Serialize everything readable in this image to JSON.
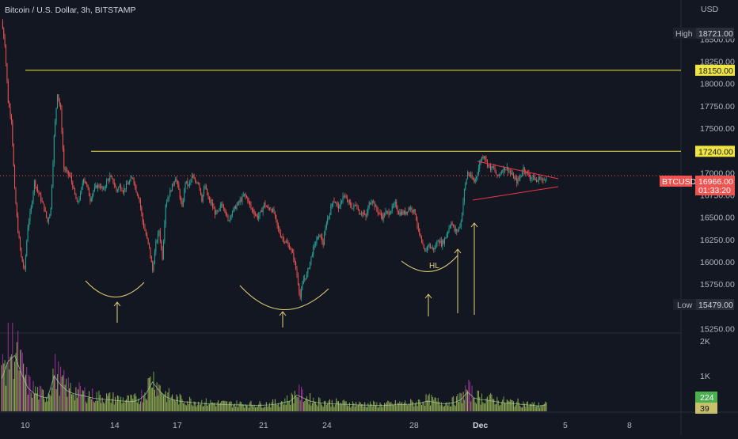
{
  "header": {
    "title": "Bitcoin / U.S. Dollar, 3h, BITSTAMP",
    "currency": "USD"
  },
  "colors": {
    "background": "#131722",
    "up": "#26a69a",
    "down": "#ef5350",
    "level_line": "#f0e442",
    "triangle": "#f23645",
    "annotation": "#e6d27a",
    "volume_up": "#7cc04a",
    "volume_down": "#c8c06a",
    "volume_spike": "#b43aa6",
    "volume_ma": "#a5d6a7",
    "axis_text": "#b2b5be",
    "current_price_label": "#ef5350"
  },
  "price_axis": {
    "ticks": [
      "18500.00",
      "18250.00",
      "18000.00",
      "17750.00",
      "17500.00",
      "17000.00",
      "16750.00",
      "16500.00",
      "16250.00",
      "16000.00",
      "15750.00",
      "15250.00"
    ],
    "tick_values": [
      18500,
      18250,
      18000,
      17750,
      17500,
      17000,
      16750,
      16500,
      16250,
      16000,
      15750,
      15250
    ]
  },
  "badges": {
    "high_label": "High",
    "high_value": "18721.00",
    "level_18150": "18150.00",
    "level_17240": "17240.00",
    "symbol": "BTCUSD",
    "current_price": "16966.00",
    "countdown": "01:33:20",
    "low_label": "Low",
    "low_value": "15479.00"
  },
  "volume_axis": {
    "ticks": [
      "2K",
      "1K"
    ],
    "last_volume": "224",
    "last_volume_ma": "39"
  },
  "time_axis": {
    "labels": [
      "10",
      "14",
      "17",
      "21",
      "24",
      "28",
      "Dec",
      "5",
      "8"
    ]
  },
  "annotations": {
    "higher_low": "HL"
  },
  "chart_data": {
    "type": "candlestick",
    "title": "Bitcoin / U.S. Dollar, 3h, BITSTAMP",
    "ylim": [
      15200,
      18850
    ],
    "horizontal_levels": [
      18150,
      17240
    ],
    "current_price": 16966,
    "high": 18721,
    "low": 15479,
    "x_labels": [
      "10",
      "14",
      "17",
      "21",
      "24",
      "28",
      "Dec",
      "5",
      "8"
    ],
    "close_path": [
      [
        0,
        18700
      ],
      [
        3,
        18450
      ],
      [
        6,
        17800
      ],
      [
        9,
        17600
      ],
      [
        12,
        16800
      ],
      [
        15,
        16350
      ],
      [
        18,
        16050
      ],
      [
        21,
        15900
      ],
      [
        24,
        16400
      ],
      [
        27,
        16600
      ],
      [
        30,
        16900
      ],
      [
        33,
        16800
      ],
      [
        36,
        16700
      ],
      [
        39,
        16600
      ],
      [
        42,
        16450
      ],
      [
        45,
        16600
      ],
      [
        48,
        17400
      ],
      [
        51,
        17900
      ],
      [
        54,
        17700
      ],
      [
        57,
        17050
      ],
      [
        60,
        17000
      ],
      [
        63,
        16950
      ],
      [
        66,
        16800
      ],
      [
        69,
        16650
      ],
      [
        72,
        16750
      ],
      [
        75,
        16950
      ],
      [
        78,
        16850
      ],
      [
        81,
        16700
      ],
      [
        84,
        16800
      ],
      [
        87,
        16850
      ],
      [
        90,
        16850
      ],
      [
        93,
        16800
      ],
      [
        96,
        16900
      ],
      [
        99,
        16950
      ],
      [
        102,
        16900
      ],
      [
        105,
        16800
      ],
      [
        108,
        16850
      ],
      [
        111,
        16800
      ],
      [
        114,
        16850
      ],
      [
        117,
        16900
      ],
      [
        120,
        16950
      ],
      [
        123,
        16800
      ],
      [
        126,
        16700
      ],
      [
        129,
        16450
      ],
      [
        132,
        16300
      ],
      [
        135,
        16150
      ],
      [
        138,
        15900
      ],
      [
        141,
        16200
      ],
      [
        144,
        16350
      ],
      [
        147,
        16050
      ],
      [
        150,
        16650
      ],
      [
        153,
        16750
      ],
      [
        156,
        16850
      ],
      [
        159,
        16950
      ],
      [
        162,
        16800
      ],
      [
        165,
        16600
      ],
      [
        168,
        16900
      ],
      [
        171,
        16850
      ],
      [
        174,
        16950
      ],
      [
        177,
        16900
      ],
      [
        180,
        16900
      ],
      [
        183,
        16700
      ],
      [
        186,
        16850
      ],
      [
        189,
        16700
      ],
      [
        192,
        16650
      ],
      [
        195,
        16550
      ],
      [
        198,
        16550
      ],
      [
        201,
        16650
      ],
      [
        204,
        16600
      ],
      [
        207,
        16450
      ],
      [
        210,
        16550
      ],
      [
        213,
        16600
      ],
      [
        216,
        16650
      ],
      [
        219,
        16700
      ],
      [
        222,
        16750
      ],
      [
        225,
        16700
      ],
      [
        228,
        16600
      ],
      [
        231,
        16550
      ],
      [
        234,
        16500
      ],
      [
        237,
        16550
      ],
      [
        240,
        16650
      ],
      [
        243,
        16600
      ],
      [
        246,
        16600
      ],
      [
        249,
        16550
      ],
      [
        252,
        16400
      ],
      [
        255,
        16300
      ],
      [
        258,
        16250
      ],
      [
        261,
        16200
      ],
      [
        264,
        16150
      ],
      [
        267,
        16050
      ],
      [
        270,
        15850
      ],
      [
        273,
        15600
      ],
      [
        276,
        15800
      ],
      [
        279,
        15850
      ],
      [
        282,
        16000
      ],
      [
        285,
        16150
      ],
      [
        288,
        16250
      ],
      [
        291,
        16300
      ],
      [
        294,
        16200
      ],
      [
        297,
        16450
      ],
      [
        300,
        16550
      ],
      [
        303,
        16700
      ],
      [
        306,
        16650
      ],
      [
        309,
        16600
      ],
      [
        312,
        16750
      ],
      [
        315,
        16700
      ],
      [
        318,
        16650
      ],
      [
        321,
        16600
      ],
      [
        324,
        16650
      ],
      [
        327,
        16550
      ],
      [
        330,
        16550
      ],
      [
        333,
        16500
      ],
      [
        336,
        16650
      ],
      [
        339,
        16700
      ],
      [
        342,
        16600
      ],
      [
        345,
        16550
      ],
      [
        348,
        16500
      ],
      [
        351,
        16550
      ],
      [
        354,
        16550
      ],
      [
        357,
        16600
      ],
      [
        360,
        16650
      ],
      [
        363,
        16550
      ],
      [
        366,
        16550
      ],
      [
        369,
        16550
      ],
      [
        372,
        16600
      ],
      [
        375,
        16600
      ],
      [
        378,
        16550
      ],
      [
        381,
        16350
      ],
      [
        384,
        16200
      ],
      [
        387,
        16100
      ],
      [
        390,
        16200
      ],
      [
        393,
        16150
      ],
      [
        396,
        16150
      ],
      [
        399,
        16250
      ],
      [
        402,
        16200
      ],
      [
        405,
        16250
      ],
      [
        408,
        16350
      ],
      [
        411,
        16450
      ],
      [
        414,
        16350
      ],
      [
        417,
        16350
      ],
      [
        420,
        16450
      ],
      [
        423,
        16800
      ],
      [
        426,
        17000
      ],
      [
        429,
        16950
      ],
      [
        432,
        16900
      ],
      [
        435,
        17000
      ],
      [
        438,
        17150
      ],
      [
        441,
        17200
      ],
      [
        444,
        17100
      ],
      [
        447,
        17050
      ],
      [
        450,
        17050
      ],
      [
        453,
        16950
      ],
      [
        456,
        17000
      ],
      [
        459,
        17050
      ],
      [
        462,
        17050
      ],
      [
        465,
        17000
      ],
      [
        468,
        16950
      ],
      [
        471,
        16900
      ],
      [
        474,
        16950
      ],
      [
        477,
        17050
      ],
      [
        480,
        17000
      ],
      [
        483,
        16950
      ],
      [
        486,
        16950
      ],
      [
        489,
        16900
      ],
      [
        492,
        16950
      ],
      [
        495,
        16900
      ],
      [
        498,
        16966
      ]
    ],
    "volume_path": [
      [
        0,
        1100
      ],
      [
        6,
        1700
      ],
      [
        12,
        1900
      ],
      [
        18,
        1300
      ],
      [
        24,
        800
      ],
      [
        30,
        600
      ],
      [
        36,
        500
      ],
      [
        42,
        450
      ],
      [
        48,
        1200
      ],
      [
        54,
        900
      ],
      [
        60,
        700
      ],
      [
        66,
        600
      ],
      [
        72,
        550
      ],
      [
        78,
        500
      ],
      [
        84,
        450
      ],
      [
        90,
        420
      ],
      [
        96,
        400
      ],
      [
        102,
        380
      ],
      [
        108,
        360
      ],
      [
        114,
        340
      ],
      [
        120,
        330
      ],
      [
        126,
        400
      ],
      [
        132,
        600
      ],
      [
        138,
        1000
      ],
      [
        144,
        700
      ],
      [
        150,
        500
      ],
      [
        156,
        400
      ],
      [
        162,
        350
      ],
      [
        168,
        320
      ],
      [
        174,
        300
      ],
      [
        180,
        280
      ],
      [
        186,
        260
      ],
      [
        192,
        250
      ],
      [
        198,
        240
      ],
      [
        204,
        230
      ],
      [
        210,
        220
      ],
      [
        216,
        220
      ],
      [
        222,
        210
      ],
      [
        228,
        210
      ],
      [
        234,
        200
      ],
      [
        240,
        210
      ],
      [
        246,
        220
      ],
      [
        252,
        250
      ],
      [
        258,
        300
      ],
      [
        264,
        350
      ],
      [
        270,
        550
      ],
      [
        276,
        450
      ],
      [
        282,
        350
      ],
      [
        288,
        300
      ],
      [
        294,
        280
      ],
      [
        300,
        260
      ],
      [
        306,
        250
      ],
      [
        312,
        240
      ],
      [
        318,
        230
      ],
      [
        324,
        220
      ],
      [
        330,
        210
      ],
      [
        336,
        210
      ],
      [
        342,
        200
      ],
      [
        348,
        200
      ],
      [
        354,
        210
      ],
      [
        360,
        220
      ],
      [
        366,
        230
      ],
      [
        372,
        240
      ],
      [
        378,
        250
      ],
      [
        384,
        300
      ],
      [
        390,
        350
      ],
      [
        396,
        300
      ],
      [
        402,
        260
      ],
      [
        408,
        260
      ],
      [
        414,
        300
      ],
      [
        420,
        400
      ],
      [
        426,
        650
      ],
      [
        432,
        450
      ],
      [
        438,
        400
      ],
      [
        444,
        380
      ],
      [
        450,
        340
      ],
      [
        456,
        300
      ],
      [
        462,
        280
      ],
      [
        468,
        260
      ],
      [
        474,
        240
      ],
      [
        480,
        220
      ],
      [
        486,
        200
      ],
      [
        492,
        180
      ],
      [
        498,
        224
      ]
    ]
  }
}
